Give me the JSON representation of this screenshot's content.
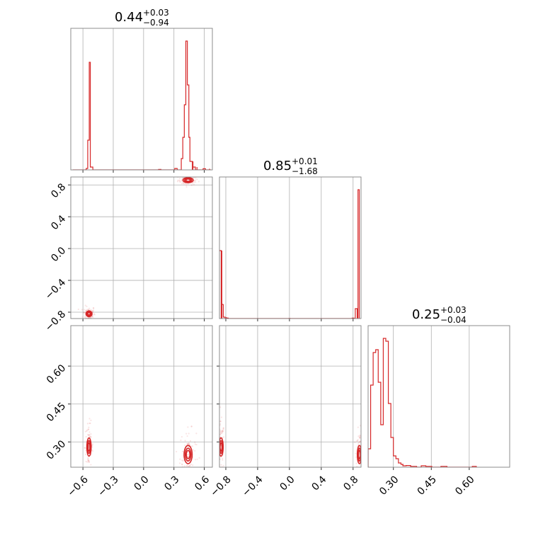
{
  "chart_data": {
    "type": "corner",
    "color": "#d62728",
    "grid": true,
    "parameters": [
      {
        "title": {
          "median": "0.44",
          "plus": "+0.03",
          "minus": "−0.94"
        },
        "range": [
          -0.72,
          0.68
        ]
      },
      {
        "title": {
          "median": "0.85",
          "plus": "+0.01",
          "minus": "−1.68"
        },
        "range": [
          -0.88,
          0.9
        ]
      },
      {
        "title": {
          "median": "0.25",
          "plus": "+0.03",
          "minus": "−0.04"
        },
        "range": [
          0.2,
          0.76
        ]
      }
    ],
    "ticks": {
      "p0": [
        {
          "v": -0.6,
          "label": "−0.6"
        },
        {
          "v": -0.3,
          "label": "−0.3"
        },
        {
          "v": 0.0,
          "label": "0.0"
        },
        {
          "v": 0.3,
          "label": "0.3"
        },
        {
          "v": 0.6,
          "label": "0.6"
        }
      ],
      "p1": [
        {
          "v": -0.8,
          "label": "−0.8"
        },
        {
          "v": -0.4,
          "label": "−0.4"
        },
        {
          "v": 0.0,
          "label": "0.0"
        },
        {
          "v": 0.4,
          "label": "0.4"
        },
        {
          "v": 0.8,
          "label": "0.8"
        }
      ],
      "p2": [
        {
          "v": 0.3,
          "label": "0.30"
        },
        {
          "v": 0.45,
          "label": "0.45"
        },
        {
          "v": 0.6,
          "label": "0.60"
        }
      ]
    },
    "histograms": {
      "p0": [
        {
          "x": -0.69,
          "y": 0
        },
        {
          "x": -0.56,
          "y": 0.01
        },
        {
          "x": -0.545,
          "y": 0.21
        },
        {
          "x": -0.53,
          "y": 0.76
        },
        {
          "x": -0.515,
          "y": 0.02
        },
        {
          "x": -0.49,
          "y": 0
        },
        {
          "x": 0.16,
          "y": 0.003
        },
        {
          "x": 0.32,
          "y": 0.01
        },
        {
          "x": 0.38,
          "y": 0.08
        },
        {
          "x": 0.395,
          "y": 0.23
        },
        {
          "x": 0.41,
          "y": 0.46
        },
        {
          "x": 0.425,
          "y": 0.91
        },
        {
          "x": 0.44,
          "y": 0.6
        },
        {
          "x": 0.455,
          "y": 0.23
        },
        {
          "x": 0.47,
          "y": 0.06
        },
        {
          "x": 0.5,
          "y": 0.02
        },
        {
          "x": 0.54,
          "y": 0.0
        },
        {
          "x": 0.6,
          "y": 0.008
        },
        {
          "x": 0.66,
          "y": 0.0
        }
      ],
      "p1": [
        {
          "x": -0.87,
          "y": 0.48
        },
        {
          "x": -0.84,
          "y": 0.1
        },
        {
          "x": -0.82,
          "y": 0.01
        },
        {
          "x": -0.78,
          "y": 0.003
        },
        {
          "x": 0.0,
          "y": 0.001
        },
        {
          "x": 0.8,
          "y": 0.003
        },
        {
          "x": 0.84,
          "y": 0.07
        },
        {
          "x": 0.87,
          "y": 0.91
        }
      ],
      "p2": [
        {
          "x": 0.205,
          "y": 0.13
        },
        {
          "x": 0.215,
          "y": 0.58
        },
        {
          "x": 0.225,
          "y": 0.81
        },
        {
          "x": 0.235,
          "y": 0.83
        },
        {
          "x": 0.245,
          "y": 0.6
        },
        {
          "x": 0.255,
          "y": 0.3
        },
        {
          "x": 0.265,
          "y": 0.91
        },
        {
          "x": 0.275,
          "y": 0.89
        },
        {
          "x": 0.285,
          "y": 0.45
        },
        {
          "x": 0.295,
          "y": 0.21
        },
        {
          "x": 0.305,
          "y": 0.08
        },
        {
          "x": 0.315,
          "y": 0.06
        },
        {
          "x": 0.325,
          "y": 0.03
        },
        {
          "x": 0.335,
          "y": 0.02
        },
        {
          "x": 0.345,
          "y": 0.01
        },
        {
          "x": 0.36,
          "y": 0.012
        },
        {
          "x": 0.38,
          "y": 0.006
        },
        {
          "x": 0.42,
          "y": 0.01
        },
        {
          "x": 0.44,
          "y": 0.006
        },
        {
          "x": 0.5,
          "y": 0.006
        },
        {
          "x": 0.62,
          "y": 0.006
        }
      ]
    },
    "clusters": {
      "p1_vs_p0": [
        {
          "x": 0.44,
          "y": 0.86,
          "spread_x": 0.05,
          "spread_y": 0.02
        },
        {
          "x": -0.54,
          "y": -0.82,
          "spread_x": 0.03,
          "spread_y": 0.03
        }
      ],
      "p2_vs_p0": [
        {
          "x": 0.44,
          "y": 0.25,
          "spread_x": 0.04,
          "spread_y": 0.03
        },
        {
          "x": -0.54,
          "y": 0.28,
          "spread_x": 0.02,
          "spread_y": 0.03
        }
      ],
      "p2_vs_p1": [
        {
          "x": -0.86,
          "y": 0.28,
          "spread_x": 0.02,
          "spread_y": 0.03
        },
        {
          "x": 0.88,
          "y": 0.25,
          "spread_x": 0.02,
          "spread_y": 0.03
        }
      ]
    }
  }
}
